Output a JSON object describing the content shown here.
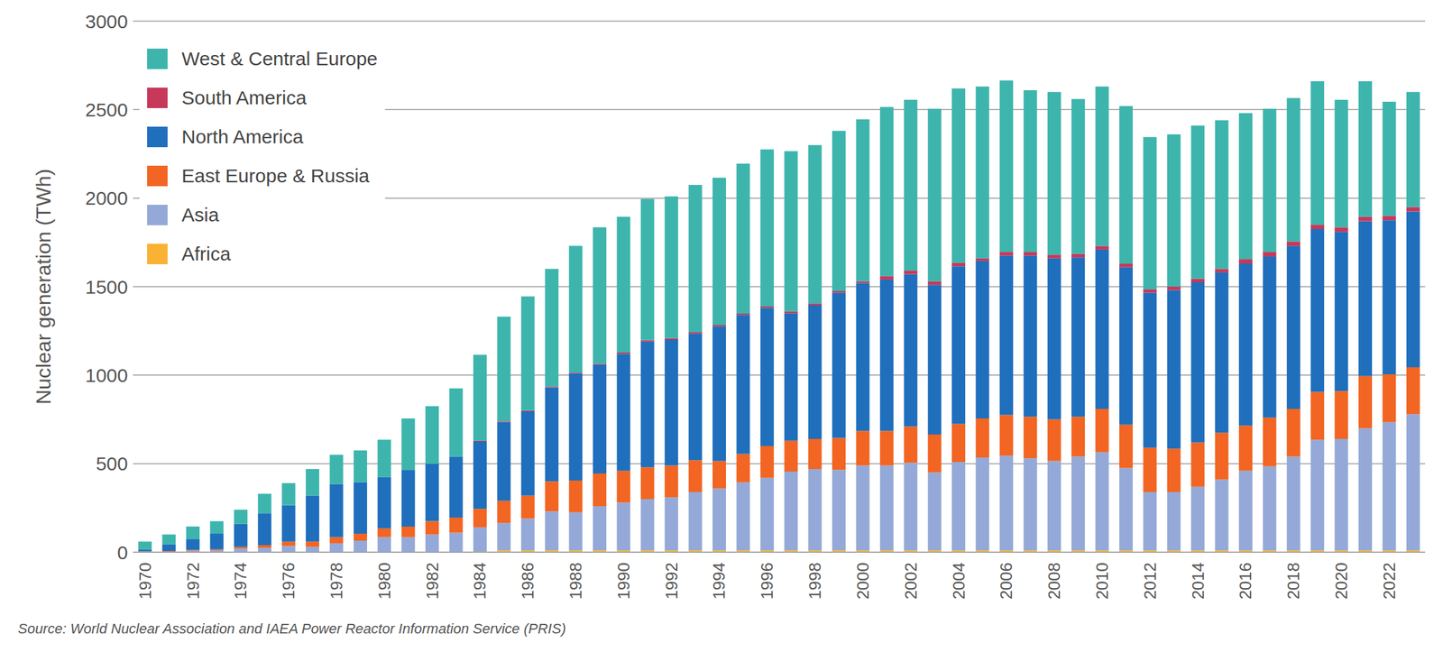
{
  "chart_data": {
    "type": "bar",
    "stacked": true,
    "grid": true,
    "legend": "top-left",
    "y_label": "Nuclear generation (TWh)",
    "source": "Source: World Nuclear Association and IAEA Power Reactor Information Service (PRIS)",
    "categories": [
      "1970",
      null,
      "1972",
      null,
      "1974",
      null,
      "1976",
      null,
      "1978",
      null,
      "1980",
      null,
      "1982",
      null,
      "1984",
      null,
      "1986",
      null,
      "1988",
      null,
      "1990",
      null,
      "1992",
      null,
      "1994",
      null,
      "1996",
      null,
      "1998",
      null,
      "2000",
      null,
      "2002",
      null,
      "2004",
      null,
      "2006",
      null,
      "2008",
      null,
      "2010",
      null,
      "2012",
      null,
      "2014",
      null,
      "2016",
      null,
      "2018",
      null,
      "2020",
      null,
      "2022",
      null
    ],
    "ylim": [
      0,
      3000
    ],
    "yticks": [
      0,
      500,
      1000,
      1500,
      2000,
      2500,
      3000
    ],
    "series": [
      {
        "name": "West & Central Europe",
        "color": "#3db5ad",
        "values": [
          45,
          55,
          70,
          70,
          80,
          110,
          125,
          150,
          165,
          180,
          210,
          290,
          325,
          385,
          485,
          590,
          645,
          665,
          715,
          770,
          767,
          797,
          802,
          832,
          832,
          847,
          887,
          905,
          895,
          905,
          915,
          955,
          965,
          975,
          985,
          970,
          970,
          915,
          920,
          875,
          900,
          890,
          860,
          860,
          865,
          840,
          825,
          810,
          810,
          810,
          720,
          765,
          645,
          650
        ]
      },
      {
        "name": "South America",
        "color": "#c7385a",
        "values": [
          0,
          0,
          0,
          0,
          0,
          0,
          0,
          0,
          0,
          0,
          0,
          0,
          0,
          0,
          5,
          5,
          5,
          5,
          5,
          5,
          8,
          8,
          8,
          8,
          8,
          8,
          8,
          10,
          10,
          10,
          10,
          20,
          20,
          20,
          20,
          15,
          20,
          20,
          20,
          20,
          20,
          20,
          20,
          20,
          20,
          20,
          25,
          25,
          25,
          25,
          25,
          25,
          25,
          25
        ]
      },
      {
        "name": "North America",
        "color": "#1f6fbd",
        "values": [
          10,
          38,
          62,
          89,
          130,
          180,
          205,
          260,
          300,
          290,
          290,
          320,
          325,
          345,
          380,
          445,
          475,
          530,
          605,
          615,
          660,
          710,
          710,
          715,
          760,
          785,
          780,
          720,
          755,
          820,
          835,
          855,
          860,
          845,
          890,
          890,
          900,
          910,
          910,
          900,
          900,
          890,
          875,
          895,
          905,
          905,
          915,
          910,
          920,
          920,
          900,
          875,
          870,
          880
        ]
      },
      {
        "name": "East Europe & Russia",
        "color": "#f26522",
        "values": [
          3,
          4,
          5,
          6,
          10,
          15,
          25,
          30,
          35,
          40,
          50,
          60,
          75,
          85,
          105,
          125,
          130,
          170,
          180,
          185,
          180,
          180,
          180,
          180,
          155,
          160,
          180,
          175,
          170,
          180,
          195,
          195,
          205,
          215,
          215,
          220,
          230,
          235,
          235,
          225,
          245,
          245,
          250,
          245,
          250,
          265,
          255,
          275,
          270,
          270,
          270,
          295,
          270,
          265
        ]
      },
      {
        "name": "Asia",
        "color": "#94a9d8",
        "values": [
          2,
          3,
          8,
          10,
          20,
          25,
          35,
          30,
          50,
          65,
          85,
          85,
          100,
          110,
          137,
          155,
          180,
          220,
          215,
          250,
          270,
          290,
          300,
          330,
          350,
          385,
          410,
          445,
          460,
          455,
          480,
          480,
          495,
          440,
          500,
          525,
          535,
          520,
          505,
          530,
          555,
          465,
          330,
          330,
          360,
          400,
          450,
          475,
          530,
          625,
          630,
          690,
          725,
          770
        ]
      },
      {
        "name": "Africa",
        "color": "#f9b234",
        "values": [
          0,
          0,
          0,
          0,
          0,
          0,
          0,
          0,
          0,
          0,
          0,
          0,
          0,
          0,
          3,
          10,
          10,
          10,
          10,
          10,
          10,
          10,
          10,
          10,
          10,
          10,
          10,
          10,
          10,
          10,
          10,
          10,
          10,
          10,
          10,
          10,
          10,
          10,
          10,
          10,
          10,
          10,
          10,
          10,
          10,
          10,
          10,
          10,
          10,
          10,
          10,
          10,
          10,
          10
        ]
      }
    ]
  }
}
